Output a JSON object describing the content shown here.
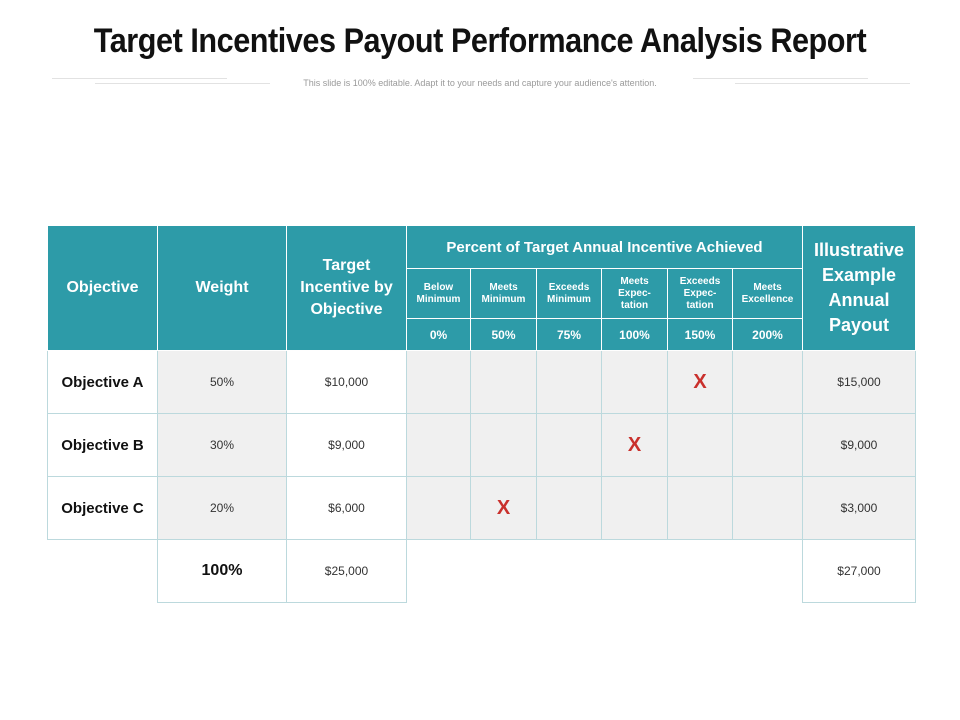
{
  "header": {
    "title": "Target Incentives Payout Performance Analysis Report",
    "subtitle": "This slide is 100% editable. Adapt it to your needs and capture your audience's attention."
  },
  "table": {
    "col_objective": "Objective",
    "col_weight": "Weight",
    "col_target": "Target Incentive by Objective",
    "group_label": "Percent of Target Annual Incentive Achieved",
    "col_payout": "Illustrative Example Annual Payout",
    "levels": [
      {
        "label": "Below Minimum",
        "pct": "0%"
      },
      {
        "label": "Meets Minimum",
        "pct": "50%"
      },
      {
        "label": "Exceeds Minimum",
        "pct": "75%"
      },
      {
        "label": "Meets Expec-tation",
        "pct": "100%"
      },
      {
        "label": "Exceeds Expec-tation",
        "pct": "150%"
      },
      {
        "label": "Meets Excellence",
        "pct": "200%"
      }
    ],
    "mark_symbol": "X",
    "rows": [
      {
        "objective": "Objective A",
        "weight": "50%",
        "target": "$10,000",
        "mark_index": 4,
        "payout": "$15,000"
      },
      {
        "objective": "Objective B",
        "weight": "30%",
        "target": "$9,000",
        "mark_index": 3,
        "payout": "$9,000"
      },
      {
        "objective": "Objective C",
        "weight": "20%",
        "target": "$6,000",
        "mark_index": 1,
        "payout": "$3,000"
      }
    ],
    "total": {
      "weight": "100%",
      "target": "$25,000",
      "payout": "$27,000"
    }
  }
}
